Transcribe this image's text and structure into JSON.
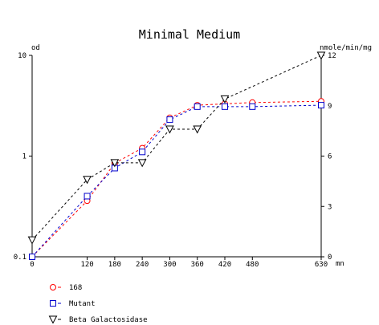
{
  "chart_data": {
    "type": "line",
    "title": "Minimal Medium",
    "y_left_label": "od",
    "y_right_label": "nmole/min/mg",
    "x_unit": "mn",
    "x_ticks": [
      0,
      120,
      180,
      240,
      300,
      360,
      420,
      480,
      630
    ],
    "x_tick_labels": [
      "0",
      "120",
      "180",
      "240",
      "300",
      "360",
      "420",
      "480",
      "630"
    ],
    "xlim": [
      0,
      630
    ],
    "y_left_scale": "log",
    "y_left_ticks": [
      0.1,
      1,
      10
    ],
    "y_left_tick_labels": [
      "0.1",
      "1",
      "10"
    ],
    "y_left_lim": [
      0.1,
      10
    ],
    "y_right_ticks": [
      0,
      3,
      6,
      9,
      12
    ],
    "y_right_tick_labels": [
      "0",
      "3",
      "6",
      "9",
      "12"
    ],
    "y_right_lim": [
      0,
      12
    ],
    "grid": false,
    "legend_position": "bottom-left",
    "series": [
      {
        "name": "168",
        "axis": "left",
        "color": "#ff0000",
        "marker": "circle",
        "x": [
          0,
          120,
          180,
          240,
          300,
          360,
          420,
          480,
          630
        ],
        "y": [
          0.1,
          0.36,
          0.85,
          1.2,
          2.4,
          3.2,
          3.3,
          3.4,
          3.5
        ]
      },
      {
        "name": "Mutant",
        "axis": "left",
        "color": "#0000cc",
        "marker": "square",
        "x": [
          0,
          120,
          180,
          240,
          300,
          360,
          420,
          480,
          630
        ],
        "y": [
          0.1,
          0.4,
          0.76,
          1.1,
          2.3,
          3.1,
          3.1,
          3.1,
          3.2
        ]
      },
      {
        "name": "Beta Galactosidase",
        "axis": "right",
        "color": "#000000",
        "marker": "triangle-down",
        "x": [
          0,
          120,
          180,
          240,
          300,
          360,
          420,
          630
        ],
        "y": [
          1,
          4.6,
          5.6,
          5.6,
          7.6,
          7.6,
          9.4,
          12
        ]
      }
    ]
  }
}
